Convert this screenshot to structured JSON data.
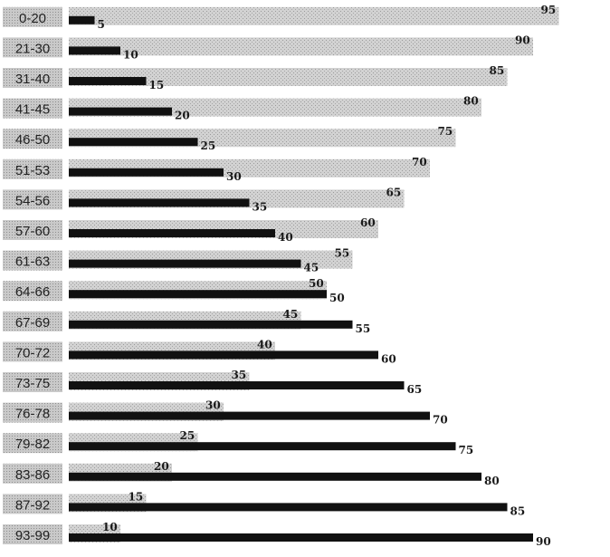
{
  "chart_data": {
    "type": "bar",
    "categories": [
      "0-20",
      "21-30",
      "31-40",
      "41-45",
      "46-50",
      "51-53",
      "54-56",
      "57-60",
      "61-63",
      "64-66",
      "67-69",
      "70-72",
      "73-75",
      "76-78",
      "79-82",
      "83-86",
      "87-92",
      "93-99"
    ],
    "series": [
      {
        "values": [
          95,
          90,
          85,
          80,
          75,
          70,
          65,
          60,
          55,
          50,
          45,
          40,
          35,
          30,
          25,
          20,
          15,
          10
        ]
      },
      {
        "values": [
          5,
          10,
          15,
          20,
          25,
          30,
          35,
          40,
          45,
          50,
          55,
          60,
          65,
          70,
          75,
          80,
          85,
          90
        ]
      }
    ],
    "colors": {
      "light_bar": "#c7c7c7",
      "dark_bar": "#111111",
      "label_box": "#c4c4c4"
    },
    "orientation": "horizontal",
    "xlim": [
      0,
      100
    ],
    "grid": false,
    "legend": "none"
  }
}
